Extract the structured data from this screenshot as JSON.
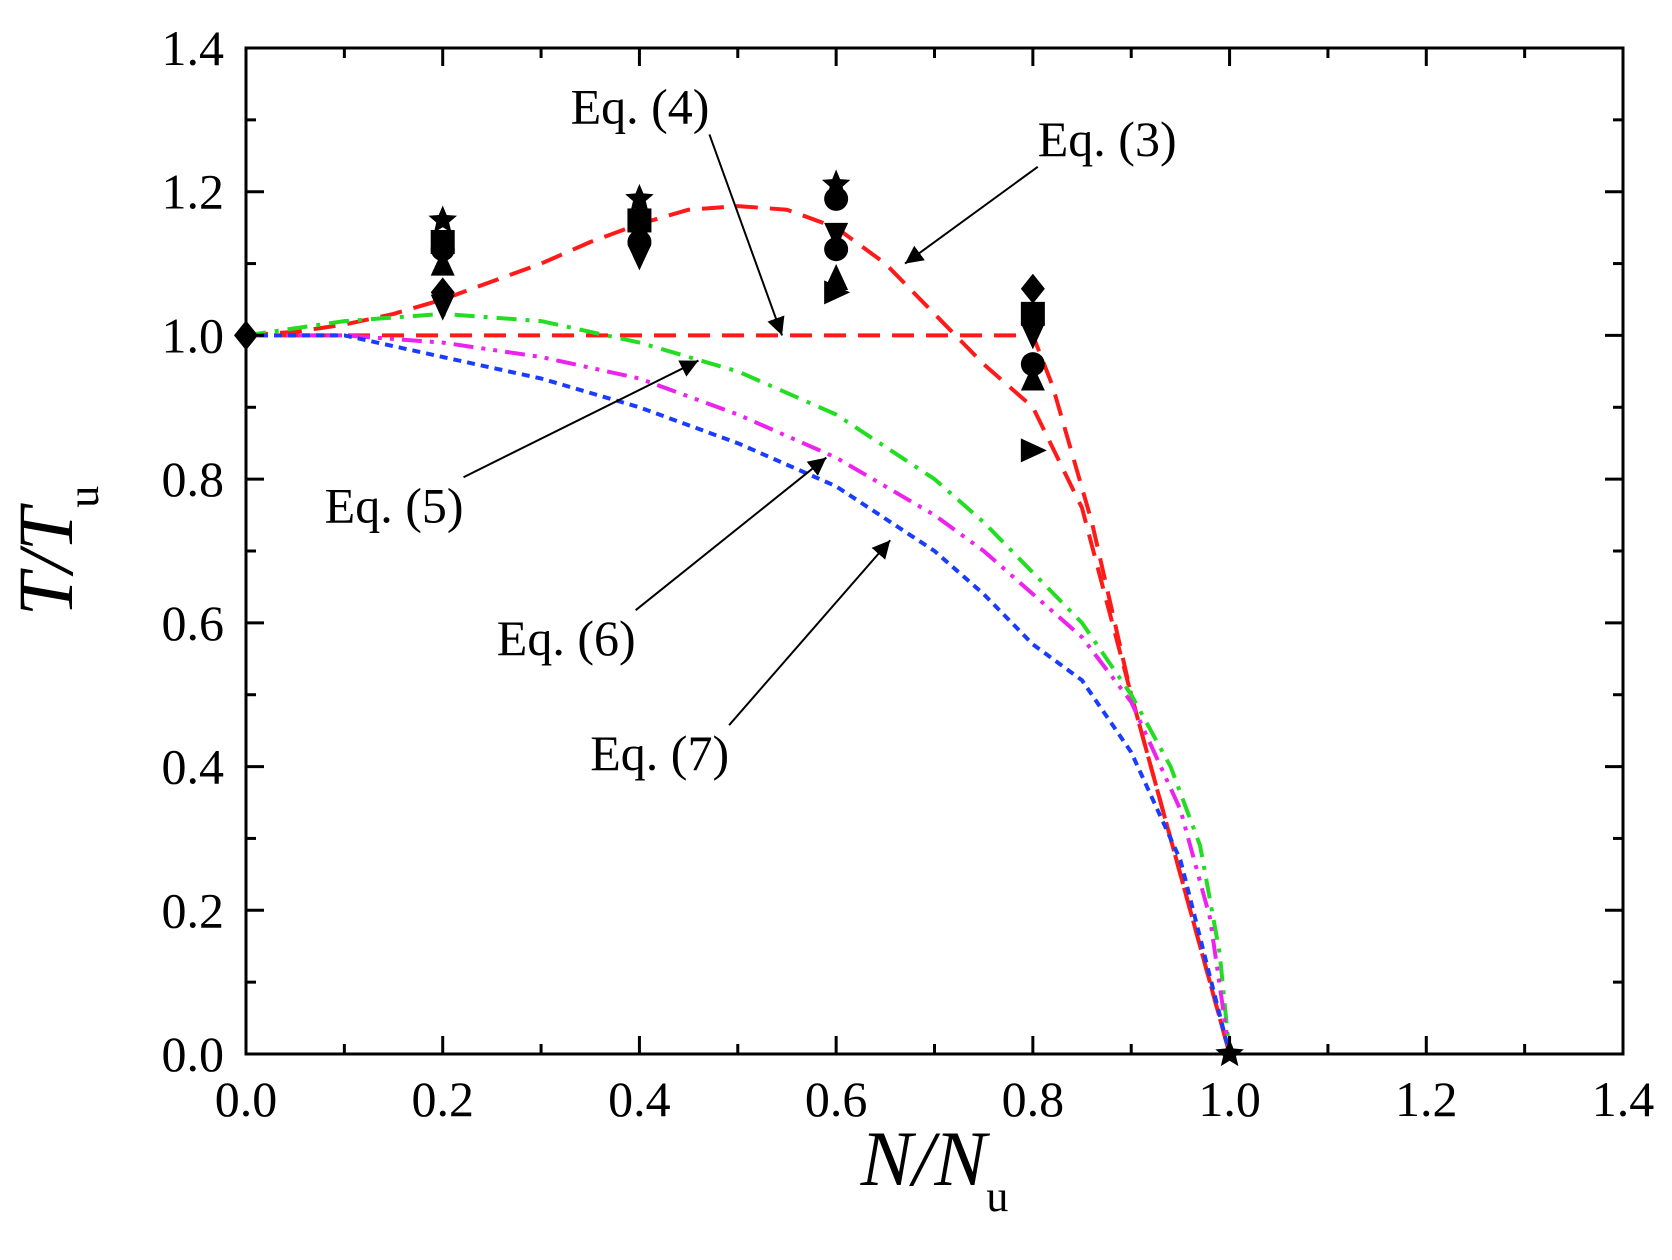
{
  "chart_data": {
    "type": "line",
    "title": "",
    "xlabel": {
      "main": "N/N",
      "sub": "u"
    },
    "ylabel": {
      "main": "T/T",
      "sub": "u"
    },
    "xlim": [
      0.0,
      1.4
    ],
    "ylim": [
      0.0,
      1.4
    ],
    "x_ticks": [
      "0.0",
      "0.2",
      "0.4",
      "0.6",
      "0.8",
      "1.0",
      "1.2",
      "1.4"
    ],
    "y_ticks": [
      "0.0",
      "0.2",
      "0.4",
      "0.6",
      "0.8",
      "1.0",
      "1.2",
      "1.4"
    ],
    "grid": false,
    "series": [
      {
        "name": "Eq. (3)",
        "color": "#ff1a1a",
        "dash": "dashed",
        "x": [
          0.0,
          0.05,
          0.1,
          0.15,
          0.2,
          0.25,
          0.3,
          0.35,
          0.4,
          0.45,
          0.5,
          0.55,
          0.6,
          0.65,
          0.7,
          0.75,
          0.8,
          0.85,
          0.9,
          0.95,
          1.0
        ],
        "y": [
          1.0,
          1.005,
          1.015,
          1.03,
          1.05,
          1.075,
          1.1,
          1.13,
          1.155,
          1.175,
          1.18,
          1.175,
          1.15,
          1.1,
          1.03,
          0.96,
          0.9,
          0.76,
          0.5,
          0.25,
          0.0
        ]
      },
      {
        "name": "Eq. (4)",
        "color": "#ff1a1a",
        "dash": "dashed",
        "x": [
          0.0,
          0.2,
          0.4,
          0.6,
          0.8,
          0.82,
          0.86,
          0.9,
          0.95,
          1.0
        ],
        "y": [
          1.0,
          1.0,
          1.0,
          1.0,
          1.0,
          0.93,
          0.74,
          0.5,
          0.25,
          0.0
        ]
      },
      {
        "name": "Eq. (5)",
        "color": "#22dd22",
        "dash": "dashdot",
        "x": [
          0.0,
          0.1,
          0.2,
          0.3,
          0.4,
          0.5,
          0.6,
          0.7,
          0.75,
          0.8,
          0.85,
          0.9,
          0.94,
          0.97,
          0.99,
          1.0
        ],
        "y": [
          1.0,
          1.02,
          1.03,
          1.02,
          0.99,
          0.95,
          0.89,
          0.8,
          0.74,
          0.67,
          0.6,
          0.5,
          0.4,
          0.29,
          0.14,
          0.0
        ]
      },
      {
        "name": "Eq. (6)",
        "color": "#ee22ee",
        "dash": "dashdotdot",
        "x": [
          0.0,
          0.1,
          0.2,
          0.3,
          0.4,
          0.5,
          0.6,
          0.7,
          0.75,
          0.8,
          0.85,
          0.9,
          0.95,
          0.98,
          1.0
        ],
        "y": [
          1.0,
          1.0,
          0.99,
          0.97,
          0.94,
          0.89,
          0.83,
          0.75,
          0.7,
          0.64,
          0.58,
          0.49,
          0.34,
          0.19,
          0.0
        ]
      },
      {
        "name": "Eq. (7)",
        "color": "#1a3cff",
        "dash": "dotted",
        "x": [
          0.0,
          0.1,
          0.2,
          0.3,
          0.4,
          0.5,
          0.6,
          0.7,
          0.75,
          0.8,
          0.85,
          0.9,
          0.95,
          1.0
        ],
        "y": [
          1.0,
          1.0,
          0.97,
          0.94,
          0.9,
          0.85,
          0.79,
          0.7,
          0.64,
          0.57,
          0.52,
          0.42,
          0.27,
          0.0
        ]
      }
    ],
    "markers": [
      {
        "shape": "diamond",
        "x": 0.0,
        "y": 1.0
      },
      {
        "shape": "star",
        "x": 0.2,
        "y": 1.16
      },
      {
        "shape": "square",
        "x": 0.2,
        "y": 1.13
      },
      {
        "shape": "tri-up",
        "x": 0.2,
        "y": 1.1
      },
      {
        "shape": "circle",
        "x": 0.2,
        "y": 1.12
      },
      {
        "shape": "diamond",
        "x": 0.2,
        "y": 1.06
      },
      {
        "shape": "tri-down",
        "x": 0.2,
        "y": 1.04
      },
      {
        "shape": "star",
        "x": 0.4,
        "y": 1.19
      },
      {
        "shape": "square",
        "x": 0.4,
        "y": 1.16
      },
      {
        "shape": "tri-up",
        "x": 0.4,
        "y": 1.17
      },
      {
        "shape": "circle",
        "x": 0.4,
        "y": 1.13
      },
      {
        "shape": "diamond",
        "x": 0.4,
        "y": 1.15
      },
      {
        "shape": "tri-down",
        "x": 0.4,
        "y": 1.11
      },
      {
        "shape": "star",
        "x": 0.6,
        "y": 1.21
      },
      {
        "shape": "circle",
        "x": 0.6,
        "y": 1.19
      },
      {
        "shape": "tri-down",
        "x": 0.6,
        "y": 1.14
      },
      {
        "shape": "circle",
        "x": 0.6,
        "y": 1.12
      },
      {
        "shape": "tri-up",
        "x": 0.6,
        "y": 1.08
      },
      {
        "shape": "tri-right",
        "x": 0.6,
        "y": 1.06
      },
      {
        "shape": "diamond",
        "x": 0.8,
        "y": 1.065
      },
      {
        "shape": "square",
        "x": 0.8,
        "y": 1.03
      },
      {
        "shape": "tri-down",
        "x": 0.8,
        "y": 1.0
      },
      {
        "shape": "circle",
        "x": 0.8,
        "y": 0.96
      },
      {
        "shape": "tri-up",
        "x": 0.8,
        "y": 0.94
      },
      {
        "shape": "tri-right",
        "x": 0.8,
        "y": 0.84
      },
      {
        "shape": "star",
        "x": 1.0,
        "y": 0.0
      }
    ],
    "annotations": [
      {
        "label": "Eq. (3)",
        "text_x": 0.805,
        "text_y": 1.25,
        "arrow_to_x": 0.67,
        "arrow_to_y": 1.1
      },
      {
        "label": "Eq. (4)",
        "text_x": 0.33,
        "text_y": 1.295,
        "arrow_to_x": 0.545,
        "arrow_to_y": 1.0
      },
      {
        "label": "Eq. (5)",
        "text_x": 0.08,
        "text_y": 0.74,
        "arrow_to_x": 0.46,
        "arrow_to_y": 0.965
      },
      {
        "label": "Eq. (6)",
        "text_x": 0.255,
        "text_y": 0.555,
        "arrow_to_x": 0.59,
        "arrow_to_y": 0.83
      },
      {
        "label": "Eq. (7)",
        "text_x": 0.35,
        "text_y": 0.395,
        "arrow_to_x": 0.655,
        "arrow_to_y": 0.715
      }
    ]
  }
}
